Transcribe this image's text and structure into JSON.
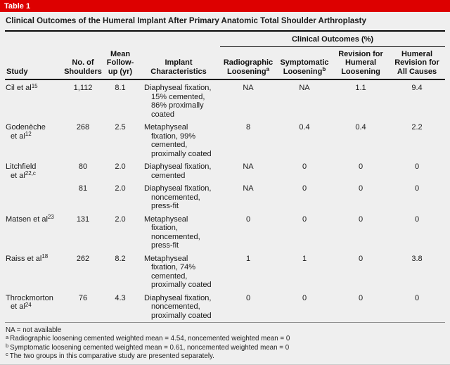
{
  "table_label": "Table 1",
  "title": "Clinical Outcomes of the Humeral Implant After Primary Anatomic Total Shoulder Arthroplasty",
  "group_header": "Clinical Outcomes (%)",
  "columns": {
    "study": "Study",
    "shoulders": "No. of\nShoulders",
    "followup": "Mean\nFollow-\nup (yr)",
    "implant": "Implant\nCharacteristics",
    "radiographic": {
      "text": "Radiographic\nLoosening",
      "sup": "a"
    },
    "symptomatic": {
      "text": "Symptomatic\nLoosening",
      "sup": "b"
    },
    "revision_humeral": "Revision for\nHumeral\nLoosening",
    "revision_all": "Humeral\nRevision for\nAll Causes"
  },
  "rows": [
    {
      "study": {
        "text": "Cil et al",
        "sup": "15"
      },
      "shoulders": "1,112",
      "followup": "8.1",
      "implant": "Diaphyseal fixation,\n15% cemented,\n86% proximally\ncoated",
      "radiographic": "NA",
      "symptomatic": "NA",
      "revision_humeral": "1.1",
      "revision_all": "9.4"
    },
    {
      "study": {
        "text": "Godenèche\net al",
        "sup": "12"
      },
      "shoulders": "268",
      "followup": "2.5",
      "implant": "Metaphyseal\nfixation, 99%\ncemented,\nproximally coated",
      "radiographic": "8",
      "symptomatic": "0.4",
      "revision_humeral": "0.4",
      "revision_all": "2.2"
    },
    {
      "study": {
        "text": "Litchfield\net al",
        "sup": "22,c"
      },
      "shoulders": "80",
      "followup": "2.0",
      "implant": "Diaphyseal fixation,\ncemented",
      "radiographic": "NA",
      "symptomatic": "0",
      "revision_humeral": "0",
      "revision_all": "0"
    },
    {
      "study": {
        "text": "",
        "sup": ""
      },
      "shoulders": "81",
      "followup": "2.0",
      "implant": "Diaphyseal fixation,\nnoncemented,\npress-fit",
      "radiographic": "NA",
      "symptomatic": "0",
      "revision_humeral": "0",
      "revision_all": "0"
    },
    {
      "study": {
        "text": "Matsen et al",
        "sup": "23"
      },
      "shoulders": "131",
      "followup": "2.0",
      "implant": "Metaphyseal\nfixation,\nnoncemented,\npress-fit",
      "radiographic": "0",
      "symptomatic": "0",
      "revision_humeral": "0",
      "revision_all": "0"
    },
    {
      "study": {
        "text": "Raiss et al",
        "sup": "18"
      },
      "shoulders": "262",
      "followup": "8.2",
      "implant": "Metaphyseal\nfixation, 74%\ncemented,\nproximally coated",
      "radiographic": "1",
      "symptomatic": "1",
      "revision_humeral": "0",
      "revision_all": "3.8"
    },
    {
      "study": {
        "text": "Throckmorton\net al",
        "sup": "24"
      },
      "shoulders": "76",
      "followup": "4.3",
      "implant": "Diaphyseal fixation,\nnoncemented,\nproximally coated",
      "radiographic": "0",
      "symptomatic": "0",
      "revision_humeral": "0",
      "revision_all": "0"
    }
  ],
  "footnotes": {
    "abbrev": "NA = not available",
    "items": [
      {
        "sup": "a",
        "text": "Radiographic loosening cemented weighted mean = 4.54, noncemented weighted mean = 0"
      },
      {
        "sup": "b",
        "text": "Symptomatic loosening cemented weighted mean = 0.61, noncemented weighted mean = 0"
      },
      {
        "sup": "c",
        "text": "The two groups in this comparative study are presented separately."
      }
    ]
  },
  "colors": {
    "header_bar": "#dd0000",
    "background": "#efefef",
    "text": "#1a1a1a",
    "rule_dark": "#0a0a0a",
    "rule_gray": "#8f8f8f"
  }
}
